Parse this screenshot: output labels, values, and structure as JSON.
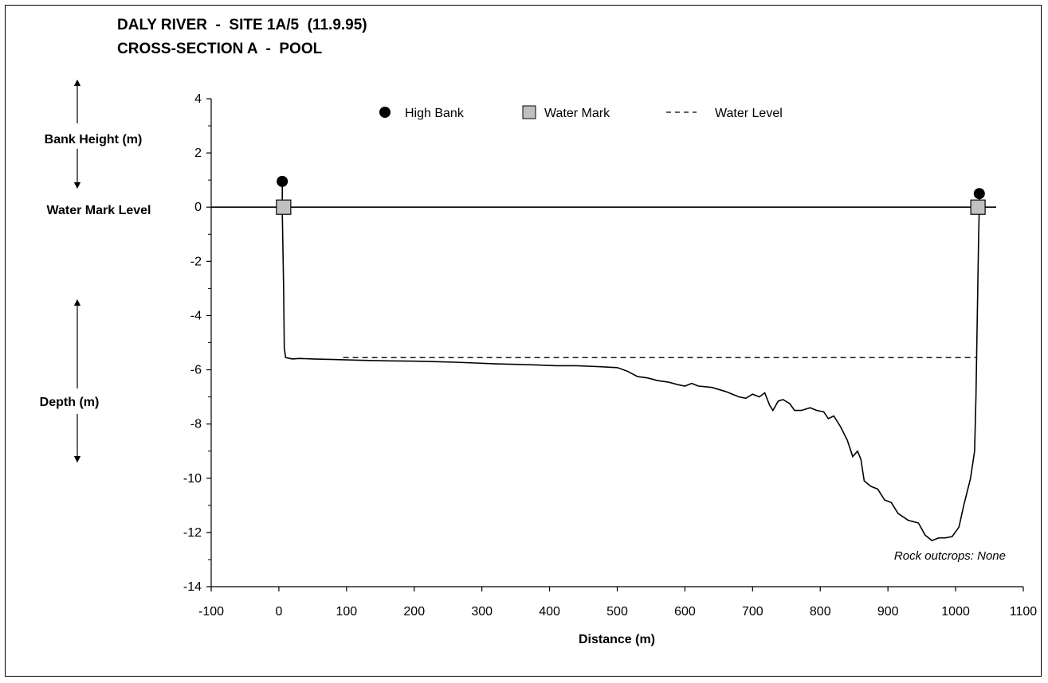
{
  "title_line1": "DALY RIVER  -  SITE 1A/5  (11.9.95)",
  "title_line2": "CROSS-SECTION A  -  POOL",
  "side_labels": {
    "bank_height": "Bank Height (m)",
    "water_mark_level": "Water Mark Level",
    "depth": "Depth (m)"
  },
  "legend": {
    "high_bank": "High Bank",
    "water_mark": "Water Mark",
    "water_level": "Water Level"
  },
  "note": "Rock outcrops: None",
  "chart_data": {
    "type": "line",
    "xlabel": "Distance (m)",
    "ylabel": "",
    "xlim": [
      -100,
      1100
    ],
    "ylim": [
      -14,
      4
    ],
    "x_ticks": [
      -100,
      0,
      100,
      200,
      300,
      400,
      500,
      600,
      700,
      800,
      900,
      1000,
      1100
    ],
    "y_ticks": [
      4,
      2,
      0,
      -2,
      -4,
      -6,
      -8,
      -10,
      -12,
      -14
    ],
    "grid": false,
    "legend_position": "top",
    "series": [
      {
        "name": "",
        "style": "line",
        "color": "#000000",
        "points": [
          [
            5,
            0.95
          ],
          [
            5,
            -0.2
          ],
          [
            7,
            -3.0
          ],
          [
            8,
            -5.2
          ],
          [
            10,
            -5.55
          ],
          [
            20,
            -5.6
          ],
          [
            30,
            -5.58
          ],
          [
            50,
            -5.6
          ],
          [
            80,
            -5.62
          ],
          [
            120,
            -5.65
          ],
          [
            160,
            -5.67
          ],
          [
            200,
            -5.68
          ],
          [
            230,
            -5.7
          ],
          [
            260,
            -5.72
          ],
          [
            290,
            -5.75
          ],
          [
            320,
            -5.78
          ],
          [
            350,
            -5.8
          ],
          [
            380,
            -5.82
          ],
          [
            410,
            -5.85
          ],
          [
            440,
            -5.85
          ],
          [
            470,
            -5.88
          ],
          [
            500,
            -5.92
          ],
          [
            515,
            -6.05
          ],
          [
            530,
            -6.25
          ],
          [
            545,
            -6.3
          ],
          [
            560,
            -6.4
          ],
          [
            575,
            -6.45
          ],
          [
            590,
            -6.55
          ],
          [
            600,
            -6.6
          ],
          [
            610,
            -6.5
          ],
          [
            620,
            -6.6
          ],
          [
            640,
            -6.65
          ],
          [
            660,
            -6.8
          ],
          [
            680,
            -7.0
          ],
          [
            690,
            -7.05
          ],
          [
            700,
            -6.9
          ],
          [
            710,
            -7.0
          ],
          [
            718,
            -6.85
          ],
          [
            725,
            -7.3
          ],
          [
            730,
            -7.5
          ],
          [
            738,
            -7.15
          ],
          [
            745,
            -7.1
          ],
          [
            755,
            -7.25
          ],
          [
            762,
            -7.5
          ],
          [
            772,
            -7.5
          ],
          [
            785,
            -7.4
          ],
          [
            795,
            -7.5
          ],
          [
            805,
            -7.55
          ],
          [
            812,
            -7.8
          ],
          [
            820,
            -7.7
          ],
          [
            830,
            -8.1
          ],
          [
            840,
            -8.6
          ],
          [
            848,
            -9.2
          ],
          [
            855,
            -9.0
          ],
          [
            860,
            -9.3
          ],
          [
            865,
            -10.1
          ],
          [
            875,
            -10.3
          ],
          [
            885,
            -10.4
          ],
          [
            895,
            -10.8
          ],
          [
            905,
            -10.9
          ],
          [
            915,
            -11.3
          ],
          [
            930,
            -11.55
          ],
          [
            945,
            -11.65
          ],
          [
            955,
            -12.1
          ],
          [
            965,
            -12.3
          ],
          [
            975,
            -12.2
          ],
          [
            985,
            -12.2
          ],
          [
            995,
            -12.15
          ],
          [
            1005,
            -11.8
          ],
          [
            1012,
            -11.0
          ],
          [
            1022,
            -10.0
          ],
          [
            1028,
            -9.0
          ],
          [
            1030,
            -7.0
          ],
          [
            1032,
            -4.0
          ],
          [
            1034,
            -1.0
          ],
          [
            1035,
            0.0
          ],
          [
            1035,
            0.5
          ]
        ]
      },
      {
        "name": "High Bank",
        "style": "marker-circle",
        "color": "#000000",
        "points": [
          [
            5,
            0.95
          ],
          [
            1035,
            0.5
          ]
        ]
      },
      {
        "name": "Water Mark",
        "style": "marker-square",
        "color": "#c0c0c0",
        "points": [
          [
            7,
            0.0
          ],
          [
            1033,
            0.0
          ]
        ]
      },
      {
        "name": "Water Level",
        "style": "dashed",
        "color": "#000000",
        "points": [
          [
            95,
            -5.55
          ],
          [
            1030,
            -5.55
          ]
        ]
      },
      {
        "name": "",
        "style": "line",
        "color": "#000000",
        "points": [
          [
            -100,
            0.0
          ],
          [
            1060,
            0.0
          ]
        ]
      }
    ]
  }
}
